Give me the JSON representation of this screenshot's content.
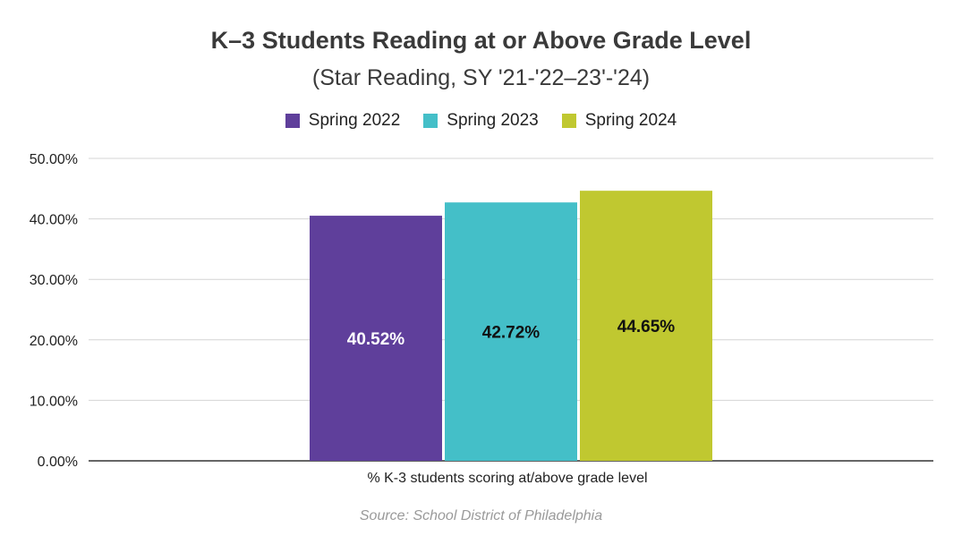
{
  "chart_data": {
    "type": "bar",
    "title": "K–3 Students Reading at or Above Grade Level",
    "subtitle": "(Star Reading, SY '21-'22–23'-'24)",
    "categories": [
      "% K-3 students scoring at/above grade level"
    ],
    "series": [
      {
        "name": "Spring 2022",
        "values": [
          40.52
        ],
        "color": "#5f3f9b",
        "label": "40.52%",
        "label_color": "#ffffff"
      },
      {
        "name": "Spring 2023",
        "values": [
          42.72
        ],
        "color": "#44bfc8",
        "label": "42.72%",
        "label_color": "#111111"
      },
      {
        "name": "Spring 2024",
        "values": [
          44.65
        ],
        "color": "#c0c830",
        "label": "44.65%",
        "label_color": "#111111"
      }
    ],
    "ylim": [
      0,
      50
    ],
    "yticks": [
      0,
      10,
      20,
      30,
      40,
      50
    ],
    "ytick_labels": [
      "0.00%",
      "10.00%",
      "20.00%",
      "30.00%",
      "40.00%",
      "50.00%"
    ],
    "grid": true,
    "legend_position": "top-center",
    "source": "Source: School District of Philadelphia"
  }
}
